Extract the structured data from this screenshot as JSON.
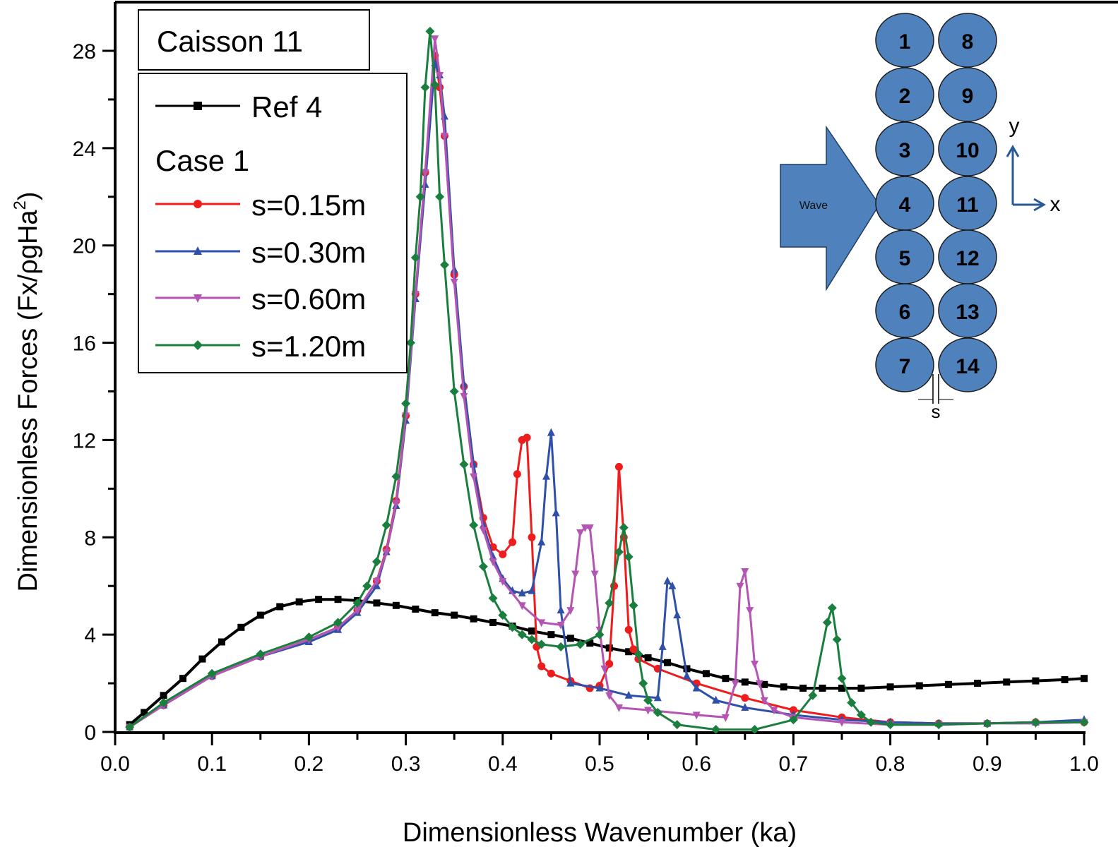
{
  "chart_data": {
    "type": "line",
    "title": "Caisson 11",
    "xlabel": "Dimensionless Wavenumber (ka)",
    "ylabel": "Dimensionless Forces (Fx/ρgHa",
    "ylabel_sup": "2",
    "ylabel_close": ")",
    "xlim": [
      0.0,
      1.0
    ],
    "ylim": [
      0,
      29
    ],
    "x_ticks": [
      0.0,
      0.1,
      0.2,
      0.3,
      0.4,
      0.5,
      0.6,
      0.7,
      0.8,
      0.9,
      1.0
    ],
    "x_tick_labels": [
      "0.0",
      "0.1",
      "0.2",
      "0.3",
      "0.4",
      "0.5",
      "0.6",
      "0.7",
      "0.8",
      "0.9",
      "1.0"
    ],
    "y_ticks": [
      0,
      4,
      8,
      12,
      16,
      20,
      24,
      28
    ],
    "y_tick_labels": [
      "0",
      "4",
      "8",
      "12",
      "16",
      "20",
      "24",
      "28"
    ],
    "y_minor_ticks": [
      2,
      6,
      10,
      14,
      18,
      22,
      26
    ],
    "x_minor_ticks": [
      0.05,
      0.15,
      0.25,
      0.35,
      0.45,
      0.55,
      0.65,
      0.75,
      0.85,
      0.95
    ],
    "grid": false,
    "legend_position": "top-left",
    "legend_group_label": "Case 1",
    "series": [
      {
        "name": "Ref 4",
        "color": "#000000",
        "marker": "square",
        "x": [
          0.015,
          0.03,
          0.05,
          0.07,
          0.09,
          0.11,
          0.13,
          0.15,
          0.17,
          0.19,
          0.21,
          0.23,
          0.25,
          0.27,
          0.29,
          0.31,
          0.33,
          0.35,
          0.37,
          0.39,
          0.41,
          0.43,
          0.45,
          0.47,
          0.49,
          0.51,
          0.53,
          0.55,
          0.57,
          0.59,
          0.61,
          0.63,
          0.65,
          0.67,
          0.69,
          0.71,
          0.73,
          0.75,
          0.77,
          0.8,
          0.83,
          0.86,
          0.89,
          0.92,
          0.95,
          0.98,
          1.0
        ],
        "y": [
          0.3,
          0.8,
          1.5,
          2.2,
          3.0,
          3.7,
          4.3,
          4.8,
          5.15,
          5.35,
          5.45,
          5.45,
          5.4,
          5.3,
          5.2,
          5.05,
          4.9,
          4.8,
          4.65,
          4.5,
          4.35,
          4.15,
          4.0,
          3.85,
          3.65,
          3.45,
          3.3,
          3.05,
          2.85,
          2.6,
          2.4,
          2.2,
          2.05,
          1.95,
          1.85,
          1.8,
          1.8,
          1.8,
          1.8,
          1.85,
          1.9,
          1.95,
          2.0,
          2.05,
          2.1,
          2.15,
          2.2
        ]
      },
      {
        "name": "s=0.15m",
        "color": "#ee1c1c",
        "marker": "circle",
        "x": [
          0.015,
          0.05,
          0.1,
          0.15,
          0.2,
          0.23,
          0.25,
          0.27,
          0.28,
          0.29,
          0.3,
          0.31,
          0.32,
          0.33,
          0.335,
          0.34,
          0.35,
          0.36,
          0.37,
          0.38,
          0.39,
          0.4,
          0.41,
          0.415,
          0.42,
          0.425,
          0.43,
          0.435,
          0.44,
          0.45,
          0.47,
          0.49,
          0.5,
          0.51,
          0.515,
          0.52,
          0.525,
          0.53,
          0.535,
          0.54,
          0.56,
          0.6,
          0.65,
          0.7,
          0.75,
          0.8,
          0.85,
          0.9,
          0.95,
          1.0
        ],
        "y": [
          0.2,
          1.1,
          2.3,
          3.1,
          3.8,
          4.3,
          5.0,
          6.2,
          7.5,
          9.5,
          13.0,
          18.0,
          23.0,
          27.8,
          26.5,
          24.5,
          18.8,
          14.2,
          11.0,
          8.8,
          7.6,
          7.3,
          7.8,
          10.6,
          12.0,
          12.1,
          8.0,
          3.5,
          2.7,
          2.4,
          2.1,
          1.8,
          1.9,
          2.8,
          6.0,
          10.9,
          8.0,
          4.2,
          3.4,
          3.0,
          2.6,
          2.0,
          1.4,
          0.9,
          0.6,
          0.4,
          0.35,
          0.35,
          0.4,
          0.4
        ]
      },
      {
        "name": "s=0.30m",
        "color": "#2f4fa8",
        "marker": "triangle-up",
        "x": [
          0.015,
          0.05,
          0.1,
          0.15,
          0.2,
          0.23,
          0.25,
          0.27,
          0.28,
          0.29,
          0.3,
          0.31,
          0.32,
          0.33,
          0.335,
          0.34,
          0.35,
          0.36,
          0.37,
          0.38,
          0.39,
          0.4,
          0.41,
          0.42,
          0.43,
          0.44,
          0.445,
          0.45,
          0.455,
          0.46,
          0.47,
          0.5,
          0.53,
          0.56,
          0.565,
          0.57,
          0.575,
          0.58,
          0.59,
          0.6,
          0.62,
          0.65,
          0.7,
          0.75,
          0.8,
          0.85,
          0.9,
          0.95,
          1.0
        ],
        "y": [
          0.2,
          1.1,
          2.3,
          3.1,
          3.7,
          4.2,
          4.9,
          6.0,
          7.4,
          9.3,
          12.8,
          17.8,
          22.5,
          27.5,
          27.0,
          25.3,
          19.0,
          14.3,
          11.0,
          8.5,
          7.2,
          6.3,
          5.8,
          5.7,
          5.8,
          7.8,
          10.5,
          12.3,
          9.0,
          5.0,
          2.0,
          1.8,
          1.5,
          1.4,
          3.5,
          6.2,
          6.0,
          4.8,
          2.3,
          1.8,
          1.3,
          1.0,
          0.7,
          0.5,
          0.4,
          0.35,
          0.35,
          0.4,
          0.5
        ]
      },
      {
        "name": "s=0.60m",
        "color": "#b455b4",
        "marker": "triangle-down",
        "x": [
          0.015,
          0.05,
          0.1,
          0.15,
          0.2,
          0.23,
          0.25,
          0.27,
          0.28,
          0.29,
          0.3,
          0.31,
          0.32,
          0.33,
          0.335,
          0.34,
          0.35,
          0.36,
          0.37,
          0.38,
          0.39,
          0.4,
          0.42,
          0.44,
          0.46,
          0.47,
          0.475,
          0.48,
          0.485,
          0.49,
          0.495,
          0.5,
          0.505,
          0.51,
          0.52,
          0.55,
          0.6,
          0.63,
          0.64,
          0.645,
          0.65,
          0.655,
          0.66,
          0.665,
          0.67,
          0.68,
          0.7,
          0.75,
          0.8,
          0.85,
          0.9,
          0.95,
          1.0
        ],
        "y": [
          0.2,
          1.1,
          2.3,
          3.1,
          3.8,
          4.3,
          5.0,
          6.2,
          7.4,
          9.4,
          13.0,
          18.0,
          23.0,
          28.5,
          27.0,
          24.5,
          18.5,
          13.8,
          10.5,
          8.3,
          7.0,
          6.2,
          5.2,
          4.5,
          4.4,
          5.0,
          6.5,
          8.2,
          8.4,
          8.4,
          6.5,
          4.2,
          2.6,
          1.5,
          1.0,
          0.9,
          0.7,
          0.6,
          2.0,
          6.0,
          6.6,
          5.0,
          2.8,
          2.0,
          1.3,
          0.9,
          0.6,
          0.4,
          0.3,
          0.3,
          0.35,
          0.35,
          0.4
        ]
      },
      {
        "name": "s=1.20m",
        "color": "#1a7e3e",
        "marker": "diamond",
        "x": [
          0.015,
          0.05,
          0.1,
          0.15,
          0.2,
          0.23,
          0.25,
          0.26,
          0.27,
          0.28,
          0.29,
          0.3,
          0.305,
          0.31,
          0.315,
          0.32,
          0.325,
          0.33,
          0.335,
          0.34,
          0.35,
          0.36,
          0.37,
          0.38,
          0.39,
          0.4,
          0.41,
          0.42,
          0.43,
          0.44,
          0.46,
          0.48,
          0.5,
          0.51,
          0.52,
          0.525,
          0.53,
          0.535,
          0.54,
          0.545,
          0.55,
          0.56,
          0.58,
          0.62,
          0.66,
          0.7,
          0.72,
          0.735,
          0.74,
          0.745,
          0.75,
          0.76,
          0.77,
          0.78,
          0.8,
          0.85,
          0.9,
          0.95,
          1.0
        ],
        "y": [
          0.2,
          1.2,
          2.4,
          3.2,
          3.9,
          4.5,
          5.3,
          6.0,
          7.0,
          8.5,
          10.5,
          13.5,
          16.0,
          19.5,
          22.0,
          26.5,
          28.8,
          26.6,
          22.0,
          19.2,
          14.0,
          11.0,
          8.5,
          6.8,
          5.5,
          4.8,
          4.3,
          4.0,
          3.8,
          3.6,
          3.5,
          3.6,
          4.0,
          5.3,
          7.4,
          8.4,
          7.2,
          5.2,
          3.2,
          2.0,
          1.3,
          0.8,
          0.3,
          0.1,
          0.1,
          0.5,
          1.5,
          4.5,
          5.1,
          3.8,
          2.2,
          1.2,
          0.7,
          0.4,
          0.3,
          0.3,
          0.35,
          0.4,
          0.4
        ]
      }
    ]
  },
  "inset": {
    "wave_label": "Wave",
    "caisson_left": [
      "1",
      "2",
      "3",
      "4",
      "5",
      "6",
      "7"
    ],
    "caisson_right": [
      "8",
      "9",
      "10",
      "11",
      "12",
      "13",
      "14"
    ],
    "axis_x_label": "x",
    "axis_y_label": "y",
    "gap_label": "s",
    "fill_color": "#4f81bd",
    "arrow_color": "#2a5a96"
  }
}
